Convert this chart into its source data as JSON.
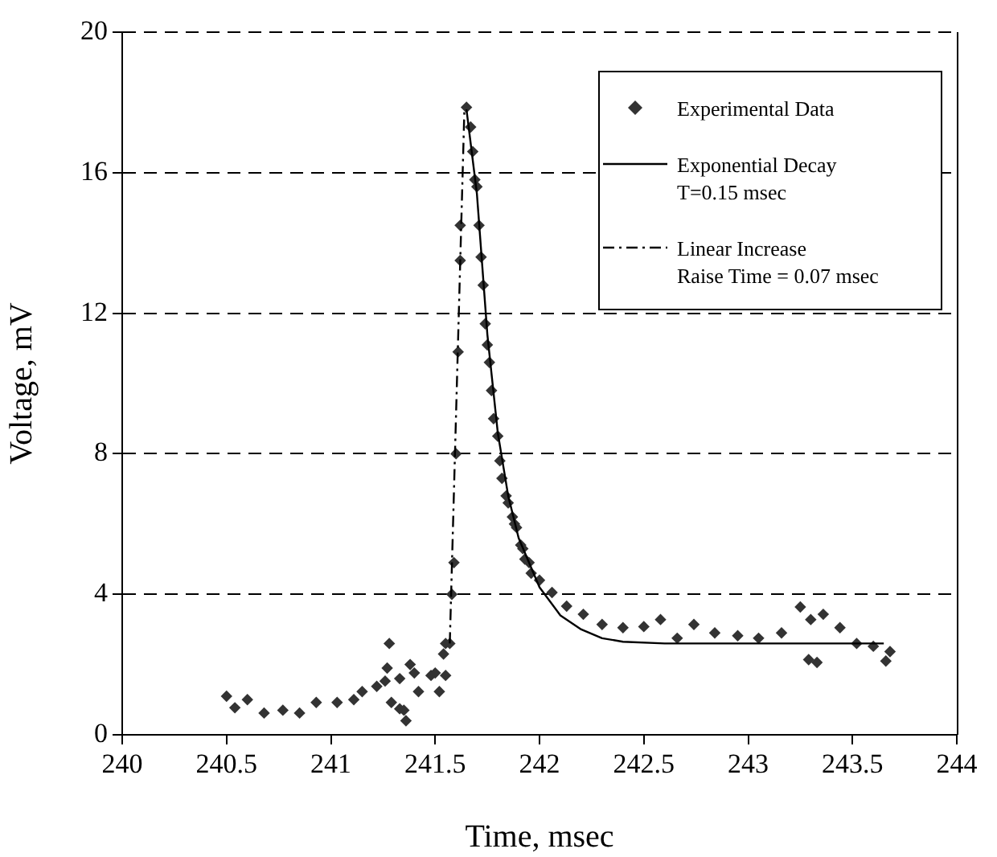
{
  "chart_data": {
    "type": "scatter",
    "xlabel": "Time, msec",
    "ylabel": "Voltage, mV",
    "xlim": [
      240,
      244
    ],
    "xticks": [
      240,
      240.5,
      241,
      241.5,
      242,
      242.5,
      243,
      243.5,
      244
    ],
    "ylim": [
      0,
      20
    ],
    "yticks": [
      0,
      4,
      8,
      12,
      16,
      20
    ],
    "grid": "y",
    "legend": "top right",
    "series": [
      {
        "name": "Experimental Data",
        "marker": "diamond",
        "color": "#333333",
        "x": [
          240.5,
          240.54,
          240.6,
          240.68,
          240.77,
          240.85,
          240.93,
          241.03,
          241.11,
          241.15,
          241.22,
          241.26,
          241.27,
          241.28,
          241.29,
          241.33,
          241.33,
          241.35,
          241.36,
          241.38,
          241.4,
          241.42,
          241.48,
          241.5,
          241.52,
          241.54,
          241.55,
          241.55,
          241.57,
          241.58,
          241.59,
          241.6,
          241.61,
          241.62,
          241.62,
          241.65,
          241.67,
          241.68,
          241.69,
          241.7,
          241.71,
          241.72,
          241.73,
          241.74,
          241.75,
          241.76,
          241.77,
          241.78,
          241.8,
          241.81,
          241.82,
          241.84,
          241.85,
          241.87,
          241.88,
          241.89,
          241.91,
          241.92,
          241.93,
          241.95,
          241.96,
          242.0,
          242.06,
          242.13,
          242.21,
          242.3,
          242.4,
          242.5,
          242.58,
          242.66,
          242.74,
          242.84,
          242.95,
          243.05,
          243.16,
          243.25,
          243.29,
          243.3,
          243.33,
          243.36,
          243.44,
          243.52,
          243.6,
          243.66,
          243.68
        ],
        "values": [
          1.1,
          0.77,
          1.0,
          0.62,
          0.7,
          0.62,
          0.92,
          0.92,
          1.0,
          1.23,
          1.38,
          1.53,
          1.9,
          2.6,
          0.92,
          0.74,
          1.6,
          0.7,
          0.4,
          2.0,
          1.76,
          1.23,
          1.69,
          1.76,
          1.23,
          2.3,
          1.69,
          2.6,
          2.6,
          4.0,
          4.9,
          8.0,
          10.9,
          13.5,
          14.5,
          17.86,
          17.3,
          16.6,
          15.8,
          15.6,
          14.5,
          13.6,
          12.8,
          11.7,
          11.1,
          10.6,
          9.8,
          9.0,
          8.5,
          7.8,
          7.3,
          6.8,
          6.6,
          6.2,
          6.0,
          5.9,
          5.4,
          5.3,
          5.0,
          4.9,
          4.6,
          4.4,
          4.05,
          3.66,
          3.43,
          3.14,
          3.05,
          3.08,
          3.28,
          2.75,
          3.14,
          2.9,
          2.82,
          2.75,
          2.9,
          3.64,
          2.14,
          3.28,
          2.06,
          3.43,
          3.05,
          2.6,
          2.52,
          2.1,
          2.37
        ]
      },
      {
        "name": "Exponential Decay\nT=0.15 msec",
        "type": "line",
        "marker": "none",
        "line_style": "solid",
        "color": "#000000",
        "x": [
          241.65,
          241.7,
          241.75,
          241.8,
          241.85,
          241.9,
          242.0,
          242.1,
          242.2,
          242.3,
          242.4,
          242.6,
          243.0,
          243.3,
          243.65
        ],
        "values": [
          17.8,
          15.4,
          11.4,
          8.6,
          6.8,
          5.6,
          4.2,
          3.4,
          3.0,
          2.75,
          2.65,
          2.6,
          2.6,
          2.6,
          2.6
        ]
      },
      {
        "name": "Linear Increase\nRaise Time = 0.07 msec",
        "type": "line",
        "marker": "none",
        "line_style": "dashed",
        "color": "#000000",
        "x": [
          241.57,
          241.64
        ],
        "values": [
          2.6,
          17.8
        ]
      }
    ]
  }
}
